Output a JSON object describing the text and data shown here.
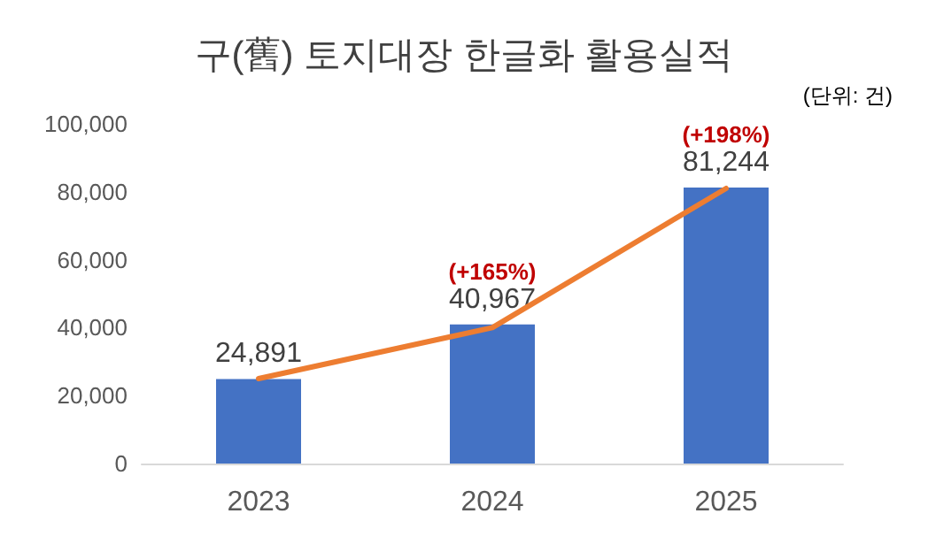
{
  "chart_data": {
    "type": "bar",
    "title": "구(舊) 토지대장 한글화 활용실적",
    "categories": [
      "2023",
      "2024",
      "2025"
    ],
    "series": [
      {
        "color": "#4472c4",
        "values": [
          24891,
          40967,
          81244
        ],
        "value_labels": [
          "24,891",
          "40,967",
          "81,244"
        ]
      },
      {
        "type": "line",
        "color": "#ed7d31",
        "values": [
          25000,
          40000,
          81000
        ],
        "marker": "none",
        "line_style": "solid"
      }
    ],
    "ylim": [
      0,
      100000
    ],
    "yticks": [
      {
        "value": 0,
        "label": "0"
      },
      {
        "value": 20000,
        "label": "20,000"
      },
      {
        "value": 40000,
        "label": "40,000"
      },
      {
        "value": 60000,
        "label": "60,000"
      },
      {
        "value": 80000,
        "label": "80,000"
      },
      {
        "value": 100000,
        "label": "100,000"
      }
    ],
    "grid": false,
    "annotations": [
      "(단위: 건)",
      "(+165%)",
      "(+198%)"
    ]
  }
}
